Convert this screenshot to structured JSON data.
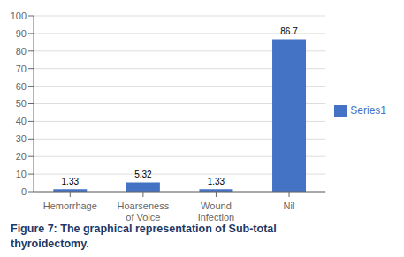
{
  "chart_data": {
    "type": "bar",
    "categories": [
      "Hemorrhage",
      "Hoarseness\nof Voice",
      "Wound\nInfection",
      "Nil"
    ],
    "series": [
      {
        "name": "Series1",
        "color": "#4472C4",
        "values": [
          1.33,
          5.32,
          1.33,
          86.7
        ]
      }
    ],
    "ylim": [
      0,
      100
    ],
    "yticks": [
      0,
      10,
      20,
      30,
      40,
      50,
      60,
      70,
      80,
      90,
      100
    ],
    "grid": true,
    "legend": "right",
    "data_labels": true,
    "annotations": [
      "Figure 7: The graphical representation of Sub-total",
      "thyroidectomy."
    ]
  }
}
